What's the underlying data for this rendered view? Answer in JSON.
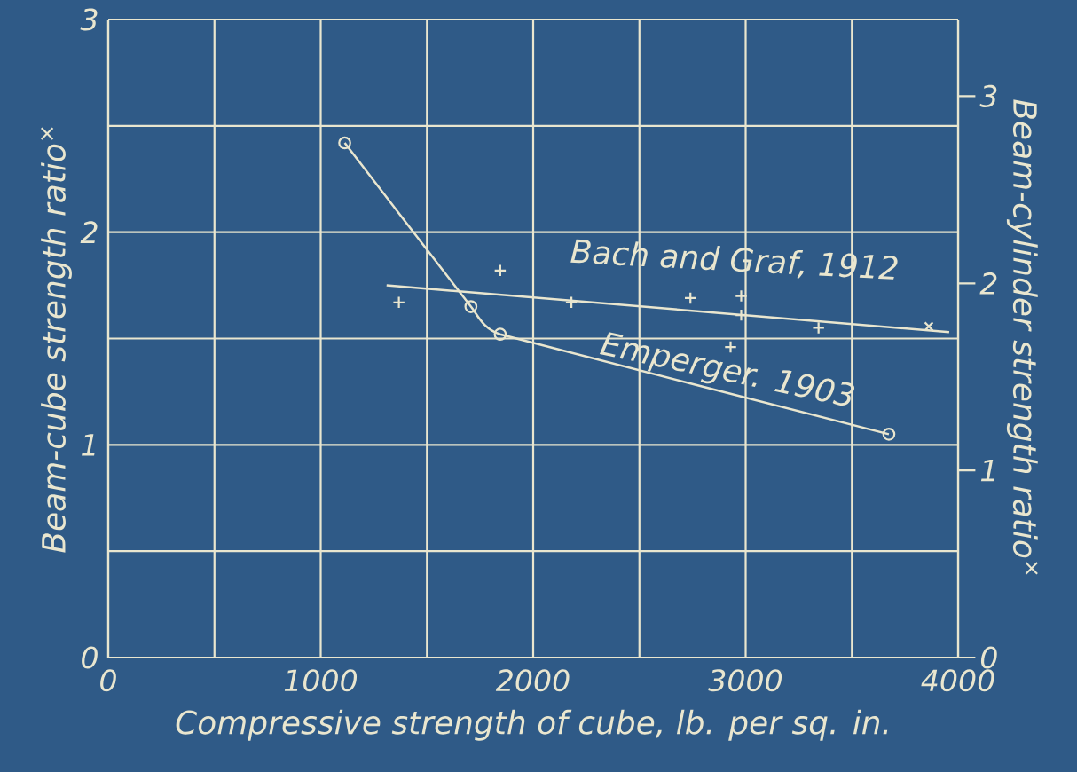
{
  "chart_data": {
    "type": "scatter",
    "xlabel": "Compressive strength of cube, lb. per sq. in.",
    "ylabel": "Beam-cube strength ratio$^{×}$",
    "y2label": "Beam-cylinder strength ratio$^{×}$",
    "xlim": [
      0,
      4000
    ],
    "xticks": [
      0,
      {
        "value": 500,
        "label": null
      },
      1000,
      {
        "value": 1500,
        "label": null
      },
      2000,
      {
        "value": 2500,
        "label": null
      },
      3000,
      {
        "value": 3500,
        "label": null
      },
      4000
    ],
    "ylim": [
      0,
      3
    ],
    "yticks": [
      0,
      {
        "value": 0.5,
        "label": null
      },
      1,
      {
        "value": 1.5,
        "label": null
      },
      2,
      {
        "value": 2.5,
        "label": null
      },
      3
    ],
    "y2lim": [
      0,
      3.41
    ],
    "y2ticks": [
      0,
      1,
      2,
      3
    ],
    "grid": true,
    "series": [
      {
        "name": "Emperger. 1903",
        "type": "line",
        "color": "#e9e6cf",
        "marker": "circle",
        "x": [
          1113,
          1707,
          1845,
          3674
        ],
        "values": [
          2.42,
          1.65,
          1.52,
          1.05
        ]
      },
      {
        "name": "Bach and Graf, 1912",
        "type": "line",
        "color": "#e9e6cf",
        "marker": "none",
        "x": [
          1310,
          3958
        ],
        "values": [
          1.75,
          1.53
        ]
      },
      {
        "color": "#e9e6cf",
        "marker": "plus",
        "x": [
          1368,
          1845,
          2180,
          2740,
          2979,
          2979,
          2929,
          3343
        ],
        "values": [
          1.67,
          1.82,
          1.67,
          1.69,
          1.7,
          1.61,
          1.46,
          1.55
        ]
      },
      {
        "color": "#e9e6cf",
        "marker": "cross",
        "axis": "y2",
        "x": [
          3862
        ],
        "values": [
          1.77
        ]
      }
    ]
  }
}
